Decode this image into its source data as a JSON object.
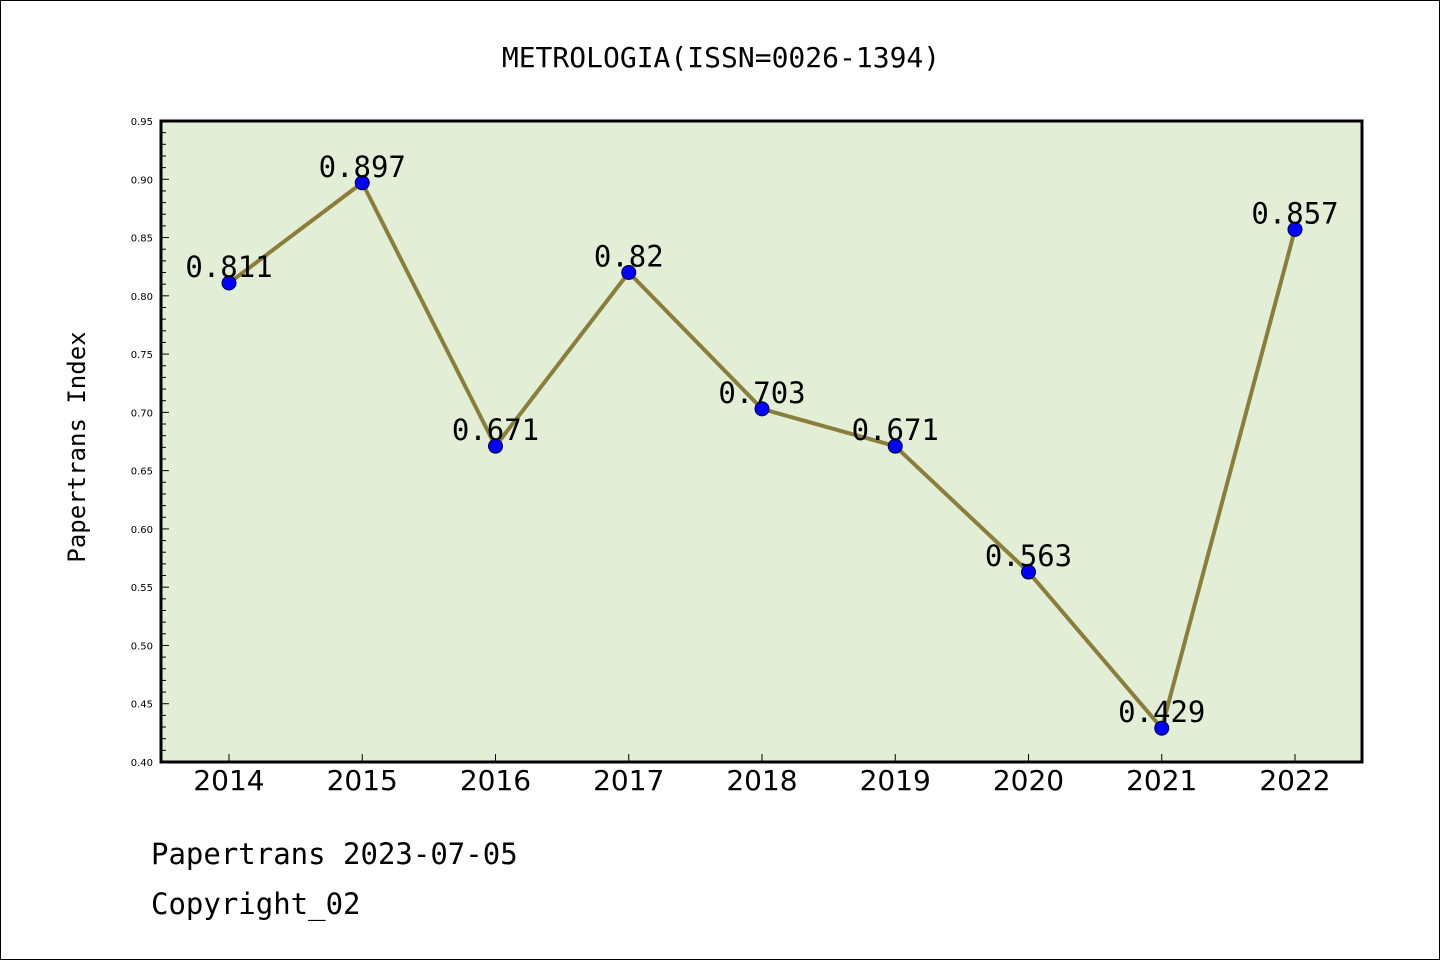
{
  "chart_data": {
    "type": "line",
    "title": "METROLOGIA(ISSN=0026-1394)",
    "xlabel": "",
    "ylabel": "Papertrans Index",
    "ylim": [
      0.4,
      0.95
    ],
    "yticks": [
      "0.40",
      "0.45",
      "0.50",
      "0.55",
      "0.60",
      "0.65",
      "0.70",
      "0.75",
      "0.80",
      "0.85",
      "0.90",
      "0.95"
    ],
    "categories": [
      "2014",
      "2015",
      "2016",
      "2017",
      "2018",
      "2019",
      "2020",
      "2021",
      "2022"
    ],
    "series": [
      {
        "values": [
          0.811,
          0.897,
          0.671,
          0.82,
          0.703,
          0.671,
          0.563,
          0.429,
          0.857
        ],
        "labels": [
          "0.811",
          "0.897",
          "0.671",
          "0.82",
          "0.703",
          "0.671",
          "0.563",
          "0.429",
          "0.857"
        ]
      }
    ],
    "grid": false,
    "line_color": "#8b7d3a",
    "marker_color": "#0000ff",
    "plot_background": "#e2efd6"
  },
  "footer": {
    "line1": "Papertrans 2023-07-05",
    "line2": "Copyright_02"
  }
}
